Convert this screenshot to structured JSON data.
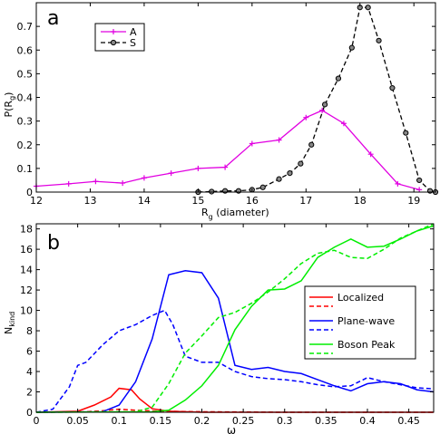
{
  "chart_data": [
    {
      "type": "line",
      "panel_label": "a",
      "xlabel": "R",
      "xlabel_sub": "g",
      "xlabel_suffix": " (diameter)",
      "ylabel": "P(R",
      "ylabel_sub": "g",
      "ylabel_suffix": ")",
      "xlim": [
        12,
        19.4
      ],
      "ylim": [
        0,
        0.8
      ],
      "xticks": [
        12,
        13,
        14,
        15,
        16,
        17,
        18,
        19
      ],
      "yticks": [
        0,
        0.1,
        0.2,
        0.3,
        0.4,
        0.5,
        0.6,
        0.7
      ],
      "grid": false,
      "legend_position": "top-left",
      "series": [
        {
          "name": "A",
          "color": "#e100e1",
          "dash": "solid",
          "marker": "plus",
          "x": [
            12.0,
            12.6,
            13.1,
            13.6,
            14.0,
            14.5,
            15.0,
            15.5,
            16.0,
            16.5,
            17.0,
            17.3,
            17.7,
            18.2,
            18.7,
            19.1
          ],
          "y": [
            0.025,
            0.035,
            0.045,
            0.038,
            0.06,
            0.08,
            0.1,
            0.105,
            0.205,
            0.22,
            0.315,
            0.345,
            0.29,
            0.16,
            0.035,
            0.01
          ]
        },
        {
          "name": "S",
          "color": "#000000",
          "dash": "dashed",
          "marker": "circle",
          "x": [
            15.0,
            15.25,
            15.5,
            15.75,
            16.0,
            16.2,
            16.5,
            16.7,
            16.9,
            17.1,
            17.35,
            17.6,
            17.85,
            18.0,
            18.15,
            18.35,
            18.6,
            18.85,
            19.1,
            19.3,
            19.4
          ],
          "y": [
            0.0,
            0.002,
            0.005,
            0.005,
            0.01,
            0.02,
            0.055,
            0.08,
            0.12,
            0.2,
            0.37,
            0.48,
            0.61,
            0.78,
            0.78,
            0.64,
            0.44,
            0.25,
            0.05,
            0.005,
            0.0
          ]
        }
      ]
    },
    {
      "type": "line",
      "panel_label": "b",
      "xlabel": "ω",
      "ylabel": "N",
      "ylabel_sub": "kind",
      "xlim": [
        0,
        0.48
      ],
      "ylim": [
        0,
        18.5
      ],
      "xticks": [
        0,
        0.05,
        0.1,
        0.15,
        0.2,
        0.25,
        0.3,
        0.35,
        0.4,
        0.45
      ],
      "xtick_labels": [
        "0",
        "0.05",
        "0.1",
        "0.15",
        "0.2",
        "0.25",
        "0.3",
        "0.35",
        "0.4",
        "0.45"
      ],
      "yticks": [
        0,
        2,
        4,
        6,
        8,
        10,
        12,
        14,
        16,
        18
      ],
      "grid": false,
      "legend_position": "center-right",
      "legend_entries": [
        "Localized",
        "Plane-wave",
        "Boson Peak"
      ],
      "series": [
        {
          "legend_index": 0,
          "color": "#ff0000",
          "dash": "solid",
          "x": [
            0,
            0.05,
            0.07,
            0.09,
            0.1,
            0.115,
            0.125,
            0.14,
            0.16,
            0.2,
            0.3,
            0.4,
            0.48
          ],
          "y": [
            0,
            0.1,
            0.7,
            1.5,
            2.35,
            2.2,
            1.3,
            0.35,
            0.1,
            0.0,
            0.0,
            0.0,
            0.0
          ]
        },
        {
          "legend_index": 0,
          "color": "#ff0000",
          "dash": "dashed",
          "x": [
            0,
            0.06,
            0.08,
            0.1,
            0.12,
            0.15,
            0.2,
            0.3,
            0.4,
            0.48
          ],
          "y": [
            0,
            0.05,
            0.15,
            0.3,
            0.2,
            0.1,
            0.05,
            0.0,
            0.0,
            0.0
          ]
        },
        {
          "legend_index": 1,
          "color": "#0000ff",
          "dash": "solid",
          "x": [
            0,
            0.08,
            0.1,
            0.12,
            0.14,
            0.16,
            0.18,
            0.2,
            0.22,
            0.24,
            0.26,
            0.28,
            0.3,
            0.32,
            0.34,
            0.36,
            0.38,
            0.4,
            0.42,
            0.44,
            0.46,
            0.48
          ],
          "y": [
            0,
            0.05,
            0.7,
            3.0,
            7.2,
            13.5,
            13.9,
            13.7,
            11.2,
            4.6,
            4.2,
            4.4,
            4.0,
            3.8,
            3.2,
            2.6,
            2.1,
            2.8,
            3.0,
            2.8,
            2.2,
            2.0
          ]
        },
        {
          "legend_index": 1,
          "color": "#0000ff",
          "dash": "dashed",
          "x": [
            0,
            0.02,
            0.04,
            0.05,
            0.06,
            0.08,
            0.1,
            0.12,
            0.14,
            0.155,
            0.165,
            0.18,
            0.2,
            0.22,
            0.24,
            0.26,
            0.28,
            0.3,
            0.32,
            0.34,
            0.36,
            0.38,
            0.4,
            0.42,
            0.44,
            0.46,
            0.48
          ],
          "y": [
            0,
            0.3,
            2.5,
            4.6,
            4.9,
            6.6,
            8.0,
            8.6,
            9.5,
            10.0,
            8.6,
            5.5,
            4.9,
            4.9,
            4.0,
            3.5,
            3.3,
            3.2,
            3.0,
            2.7,
            2.5,
            2.6,
            3.4,
            3.0,
            2.7,
            2.4,
            2.3
          ]
        },
        {
          "legend_index": 2,
          "color": "#00ee00",
          "dash": "solid",
          "x": [
            0,
            0.14,
            0.16,
            0.18,
            0.2,
            0.22,
            0.24,
            0.26,
            0.28,
            0.3,
            0.32,
            0.34,
            0.36,
            0.38,
            0.4,
            0.42,
            0.44,
            0.46,
            0.48
          ],
          "y": [
            0,
            0.05,
            0.2,
            1.2,
            2.6,
            4.6,
            8.1,
            10.4,
            12.0,
            12.1,
            12.9,
            15.2,
            16.2,
            17.0,
            16.2,
            16.3,
            17.0,
            17.8,
            18.3
          ]
        },
        {
          "legend_index": 2,
          "color": "#00ee00",
          "dash": "dashed",
          "x": [
            0,
            0.12,
            0.14,
            0.16,
            0.18,
            0.2,
            0.22,
            0.24,
            0.26,
            0.28,
            0.3,
            0.32,
            0.34,
            0.36,
            0.38,
            0.4,
            0.42,
            0.44,
            0.46,
            0.48
          ],
          "y": [
            0,
            0.05,
            0.5,
            2.8,
            5.8,
            7.5,
            9.3,
            9.8,
            10.7,
            11.8,
            13.1,
            14.6,
            15.6,
            15.9,
            15.2,
            15.1,
            16.0,
            17.1,
            17.8,
            18.5
          ]
        }
      ]
    }
  ]
}
